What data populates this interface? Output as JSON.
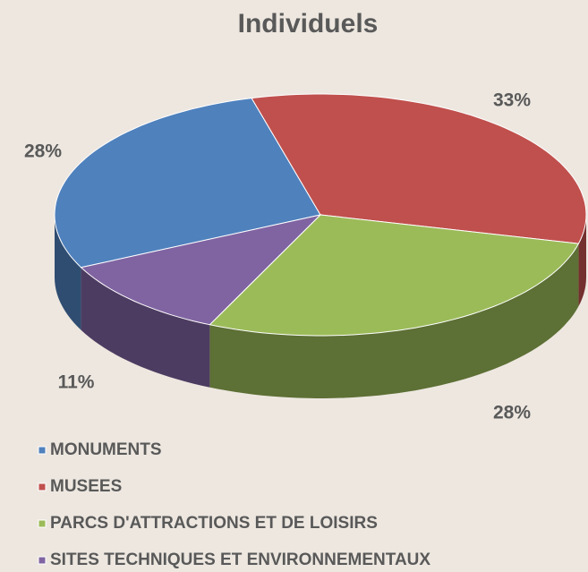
{
  "chart_data": {
    "type": "pie3d",
    "title": "Individuels",
    "categories": [
      "MONUMENTS",
      "MUSEES",
      "PARCS D'ATTRACTIONS ET DE LOISIRS",
      "SITES TECHNIQUES ET ENVIRONNEMENTAUX"
    ],
    "values": [
      28,
      33,
      28,
      11
    ],
    "value_labels": [
      "28%",
      "33%",
      "28%",
      "11%"
    ],
    "colors": [
      "#4f81bd",
      "#c0504d",
      "#9bbb59",
      "#8064a2"
    ],
    "legend": "bottom"
  }
}
